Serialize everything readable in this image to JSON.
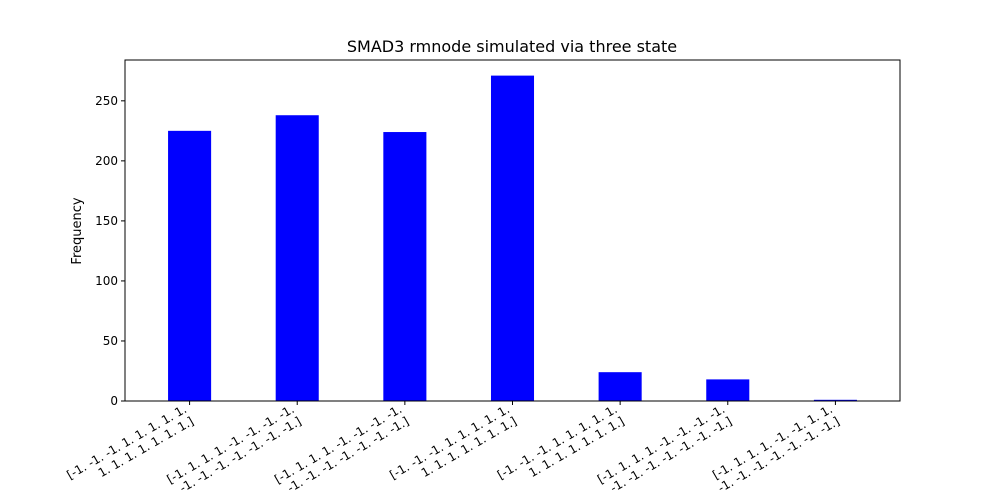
{
  "chart_data": {
    "type": "bar",
    "title": "SMAD3 rmnode simulated via three state",
    "xlabel": "",
    "ylabel": "Frequency",
    "ylim": [
      0,
      284
    ],
    "yticks": [
      0,
      50,
      100,
      150,
      200,
      250
    ],
    "grid": false,
    "bar_color": "#0000ff",
    "categories": [
      [
        "[-1. -1. -1.  1.  1.  1.  1.  1.",
        " 1.  1.  1.  1.  1.  1.  1.]"
      ],
      [
        "[-1.  1.  1.  1. -1. -1. -1. -1.",
        "-1. -1. -1. -1. -1. -1. -1.]"
      ],
      [
        "[-1.  1.  1.  1. -1. -1. -1. -1.",
        "-1. -1. -1. -1. -1. -1. -1.]"
      ],
      [
        "[-1. -1. -1.  1.  1.  1.  1.  1.",
        " 1.  1.  1.  1.  1.  1.  1.]"
      ],
      [
        "[-1. -1. -1.  1.  1.  1.  1.  1.",
        " 1.  1.  1.  1.  1.  1.  1.]"
      ],
      [
        "[-1.  1.  1.  1. -1. -1. -1. -1.",
        "-1. -1. -1. -1. -1. -1. -1.]"
      ],
      [
        "[-1.  1.  1.  1. -1. -1.  1.  1.",
        "-1. -1. -1. -1. -1. -1. -1.]"
      ]
    ],
    "values": [
      225,
      238,
      224,
      271,
      24,
      18,
      1
    ]
  }
}
